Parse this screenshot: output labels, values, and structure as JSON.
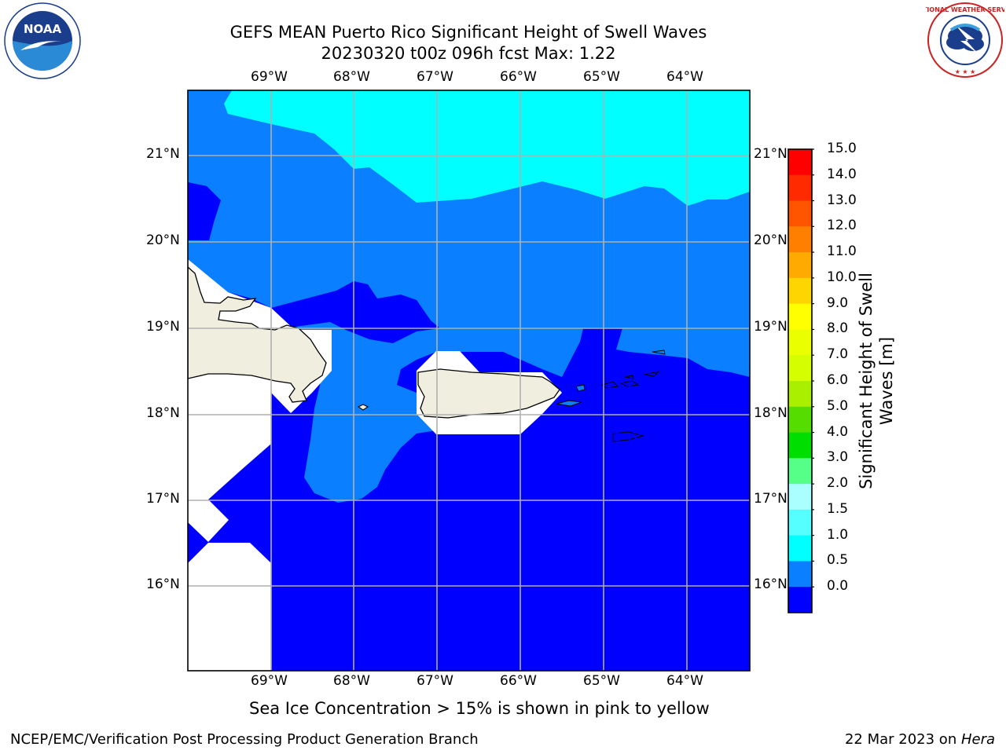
{
  "title": {
    "line1": "GEFS MEAN Puerto Rico Significant Height of Swell Waves",
    "line2": "20230320 t00z 096h fcst   Max: 1.22"
  },
  "map": {
    "lon_labels": [
      "69°W",
      "68°W",
      "67°W",
      "66°W",
      "65°W",
      "64°W"
    ],
    "lat_labels": [
      "21°N",
      "20°N",
      "19°N",
      "18°N",
      "17°N",
      "16°N"
    ],
    "colors": {
      "land": "#EFEEDF",
      "band_0_05": "#0000FF",
      "band_05_10": "#0A7FFF",
      "band_10_15": "#00FFFF",
      "grid": "#B0B0B0",
      "nodata": "#FFFFFF"
    }
  },
  "colorbar": {
    "title_line1": "Significant Height of Swell",
    "title_line2": "Waves [m]",
    "tick_labels": [
      "15.0",
      "14.0",
      "13.0",
      "12.0",
      "11.0",
      "10.0",
      "9.0",
      "8.0",
      "7.0",
      "6.0",
      "5.0",
      "4.0",
      "3.0",
      "2.0",
      "1.5",
      "1.0",
      "0.5",
      "0.0"
    ],
    "colors_top_to_bottom": [
      "#FF0000",
      "#FF2A00",
      "#FF5500",
      "#FF8000",
      "#FFAA00",
      "#FFD500",
      "#FFFF00",
      "#EAFF00",
      "#D5FF00",
      "#AAEE00",
      "#55DD00",
      "#00DD00",
      "#55FF88",
      "#AAFFFF",
      "#55FFFF",
      "#00FFFF",
      "#0A7FFF",
      "#0000FF"
    ]
  },
  "caption": "Sea Ice Concentration > 15% is shown in pink to yellow",
  "footer": {
    "left": "NCEP/EMC/Verification Post Processing Product Generation Branch",
    "right_prefix": "22 Mar 2023 on ",
    "right_host": "Hera"
  },
  "logos": {
    "left": "noaa-logo",
    "right": "national-weather-service-logo",
    "nws_text": "NATIONAL WEATHER SERVICE"
  }
}
